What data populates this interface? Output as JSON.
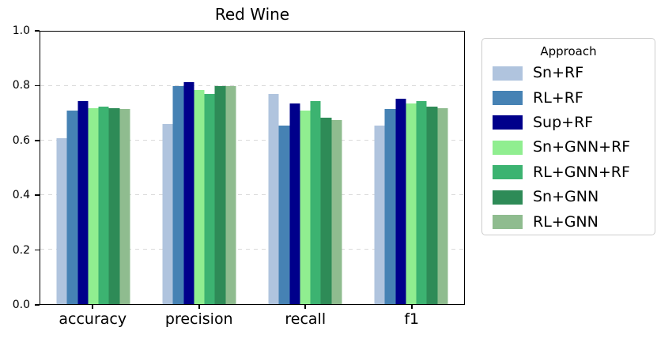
{
  "chart_data": {
    "type": "bar",
    "title": "Red Wine",
    "categories": [
      "accuracy",
      "precision",
      "recall",
      "f1"
    ],
    "series": [
      {
        "name": "Sn+RF",
        "color": "#b0c4de",
        "values": [
          0.61,
          0.66,
          0.77,
          0.655
        ]
      },
      {
        "name": "RL+RF",
        "color": "#4682b4",
        "values": [
          0.71,
          0.8,
          0.655,
          0.715
        ]
      },
      {
        "name": "Sup+RF",
        "color": "#00008b",
        "values": [
          0.745,
          0.815,
          0.735,
          0.755
        ]
      },
      {
        "name": "Sn+GNN+RF",
        "color": "#90ee90",
        "values": [
          0.72,
          0.785,
          0.71,
          0.735
        ]
      },
      {
        "name": "RL+GNN+RF",
        "color": "#3cb371",
        "values": [
          0.725,
          0.77,
          0.745,
          0.745
        ]
      },
      {
        "name": "Sn+GNN",
        "color": "#2e8b57",
        "values": [
          0.72,
          0.8,
          0.685,
          0.725
        ]
      },
      {
        "name": "RL+GNN",
        "color": "#8fbc8f",
        "values": [
          0.715,
          0.8,
          0.675,
          0.72
        ]
      }
    ],
    "legend_title": "Approach",
    "legend_position": "right",
    "xlabel": "",
    "ylabel": "",
    "ylim": [
      0.0,
      1.0
    ],
    "yticks": [
      "0.0",
      "0.2",
      "0.4",
      "0.6",
      "0.8",
      "1.0"
    ],
    "grid": {
      "axis": "y",
      "style": "dashed",
      "color": "#d9d9d9"
    },
    "frame": "full-box",
    "background": "#ffffff"
  }
}
